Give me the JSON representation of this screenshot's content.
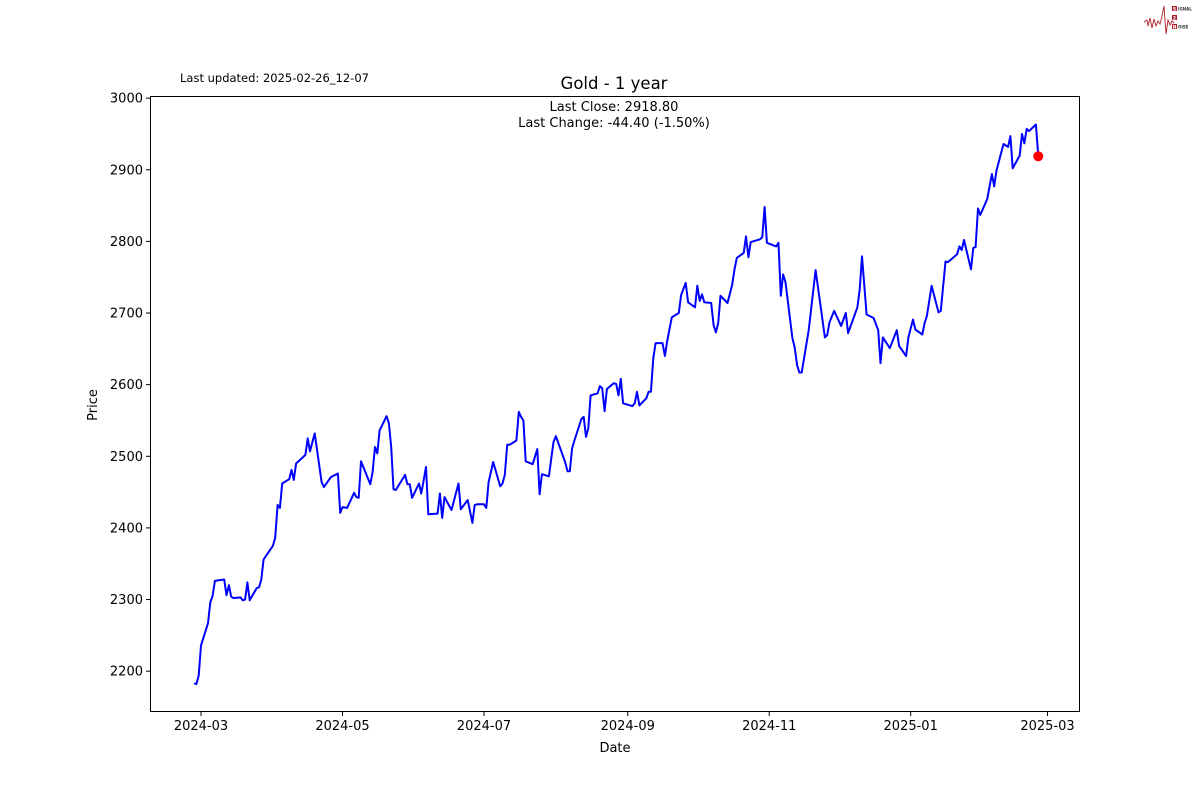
{
  "header": {
    "last_updated": "Last updated: 2025-02-26_12-07"
  },
  "logo": {
    "text": "SIGNAL 2 NOISE",
    "color": "#b0202a"
  },
  "chart_data": {
    "type": "line",
    "title": "Gold - 1 year",
    "xlabel": "Date",
    "ylabel": "Price",
    "annotation": {
      "line1": "Last Close: 2918.80",
      "line2": "Last Change: -44.40 (-1.50%)"
    },
    "xlim": [
      "2024-02-08",
      "2025-03-15"
    ],
    "ylim": [
      2143,
      3003
    ],
    "grid": false,
    "line_color": "#0000ff",
    "marker_color": "#ff0000",
    "x_ticks": [
      {
        "date": "2024-03-01",
        "label": "2024-03"
      },
      {
        "date": "2024-05-01",
        "label": "2024-05"
      },
      {
        "date": "2024-07-01",
        "label": "2024-07"
      },
      {
        "date": "2024-09-01",
        "label": "2024-09"
      },
      {
        "date": "2024-11-01",
        "label": "2024-11"
      },
      {
        "date": "2025-01-01",
        "label": "2025-01"
      },
      {
        "date": "2025-03-01",
        "label": "2025-03"
      }
    ],
    "y_ticks": [
      {
        "value": 2200,
        "label": "2200"
      },
      {
        "value": 2300,
        "label": "2300"
      },
      {
        "value": 2400,
        "label": "2400"
      },
      {
        "value": 2500,
        "label": "2500"
      },
      {
        "value": 2600,
        "label": "2600"
      },
      {
        "value": 2700,
        "label": "2700"
      },
      {
        "value": 2800,
        "label": "2800"
      },
      {
        "value": 2900,
        "label": "2900"
      },
      {
        "value": 3000,
        "label": "3000"
      }
    ],
    "last_point": {
      "date": "2025-02-25",
      "value": 2918.8
    },
    "series": [
      {
        "x": [
          "2024-02-27",
          "2024-02-28",
          "2024-02-29",
          "2024-03-01",
          "2024-03-04",
          "2024-03-05",
          "2024-03-06",
          "2024-03-07",
          "2024-03-11",
          "2024-03-12",
          "2024-03-13",
          "2024-03-14",
          "2024-03-15",
          "2024-03-18",
          "2024-03-19",
          "2024-03-20",
          "2024-03-21",
          "2024-03-22",
          "2024-03-25",
          "2024-03-26",
          "2024-03-27",
          "2024-03-28",
          "2024-04-01",
          "2024-04-02",
          "2024-04-03",
          "2024-04-04",
          "2024-04-05",
          "2024-04-08",
          "2024-04-09",
          "2024-04-10",
          "2024-04-11",
          "2024-04-15",
          "2024-04-16",
          "2024-04-17",
          "2024-04-19",
          "2024-04-22",
          "2024-04-23",
          "2024-04-26",
          "2024-04-29",
          "2024-04-30",
          "2024-05-01",
          "2024-05-03",
          "2024-05-06",
          "2024-05-07",
          "2024-05-08",
          "2024-05-09",
          "2024-05-13",
          "2024-05-14",
          "2024-05-15",
          "2024-05-16",
          "2024-05-17",
          "2024-05-20",
          "2024-05-21",
          "2024-05-22",
          "2024-05-23",
          "2024-05-24",
          "2024-05-28",
          "2024-05-29",
          "2024-05-30",
          "2024-05-31",
          "2024-06-03",
          "2024-06-04",
          "2024-06-06",
          "2024-06-07",
          "2024-06-11",
          "2024-06-12",
          "2024-06-13",
          "2024-06-14",
          "2024-06-17",
          "2024-06-20",
          "2024-06-21",
          "2024-06-24",
          "2024-06-26",
          "2024-06-27",
          "2024-06-28",
          "2024-07-01",
          "2024-07-02",
          "2024-07-03",
          "2024-07-05",
          "2024-07-08",
          "2024-07-09",
          "2024-07-10",
          "2024-07-11",
          "2024-07-12",
          "2024-07-15",
          "2024-07-16",
          "2024-07-17",
          "2024-07-18",
          "2024-07-19",
          "2024-07-22",
          "2024-07-24",
          "2024-07-25",
          "2024-07-26",
          "2024-07-29",
          "2024-07-31",
          "2024-08-01",
          "2024-08-05",
          "2024-08-06",
          "2024-08-07",
          "2024-08-08",
          "2024-08-09",
          "2024-08-12",
          "2024-08-13",
          "2024-08-14",
          "2024-08-15",
          "2024-08-16",
          "2024-08-19",
          "2024-08-20",
          "2024-08-21",
          "2024-08-22",
          "2024-08-23",
          "2024-08-26",
          "2024-08-27",
          "2024-08-28",
          "2024-08-29",
          "2024-08-30",
          "2024-09-03",
          "2024-09-04",
          "2024-09-05",
          "2024-09-06",
          "2024-09-09",
          "2024-09-10",
          "2024-09-11",
          "2024-09-12",
          "2024-09-13",
          "2024-09-16",
          "2024-09-17",
          "2024-09-18",
          "2024-09-20",
          "2024-09-23",
          "2024-09-24",
          "2024-09-26",
          "2024-09-27",
          "2024-09-30",
          "2024-10-01",
          "2024-10-02",
          "2024-10-03",
          "2024-10-04",
          "2024-10-07",
          "2024-10-08",
          "2024-10-09",
          "2024-10-10",
          "2024-10-11",
          "2024-10-14",
          "2024-10-16",
          "2024-10-17",
          "2024-10-18",
          "2024-10-21",
          "2024-10-22",
          "2024-10-23",
          "2024-10-24",
          "2024-10-28",
          "2024-10-29",
          "2024-10-30",
          "2024-10-31",
          "2024-11-04",
          "2024-11-05",
          "2024-11-06",
          "2024-11-07",
          "2024-11-08",
          "2024-11-11",
          "2024-11-12",
          "2024-11-13",
          "2024-11-14",
          "2024-11-15",
          "2024-11-18",
          "2024-11-19",
          "2024-11-21",
          "2024-11-25",
          "2024-11-26",
          "2024-11-27",
          "2024-11-29",
          "2024-12-02",
          "2024-12-04",
          "2024-12-05",
          "2024-12-09",
          "2024-12-10",
          "2024-12-11",
          "2024-12-13",
          "2024-12-16",
          "2024-12-18",
          "2024-12-19",
          "2024-12-20",
          "2024-12-23",
          "2024-12-26",
          "2024-12-27",
          "2024-12-30",
          "2024-12-31",
          "2025-01-02",
          "2025-01-03",
          "2025-01-06",
          "2025-01-07",
          "2025-01-08",
          "2025-01-10",
          "2025-01-13",
          "2025-01-14",
          "2025-01-16",
          "2025-01-17",
          "2025-01-21",
          "2025-01-22",
          "2025-01-23",
          "2025-01-24",
          "2025-01-27",
          "2025-01-28",
          "2025-01-29",
          "2025-01-30",
          "2025-01-31",
          "2025-02-03",
          "2025-02-05",
          "2025-02-06",
          "2025-02-07",
          "2025-02-10",
          "2025-02-12",
          "2025-02-13",
          "2025-02-14",
          "2025-02-17",
          "2025-02-18",
          "2025-02-19",
          "2025-02-20",
          "2025-02-21",
          "2025-02-24",
          "2025-02-25"
        ],
        "values": [
          2183,
          2182,
          2194,
          2236,
          2267,
          2296,
          2305,
          2326,
          2328,
          2306,
          2320,
          2304,
          2302,
          2303,
          2299,
          2300,
          2324,
          2299,
          2316,
          2317,
          2328,
          2356,
          2375,
          2386,
          2432,
          2428,
          2462,
          2468,
          2481,
          2467,
          2490,
          2502,
          2525,
          2507,
          2532,
          2464,
          2457,
          2471,
          2476,
          2421,
          2429,
          2428,
          2449,
          2443,
          2442,
          2493,
          2461,
          2478,
          2513,
          2504,
          2536,
          2556,
          2546,
          2513,
          2454,
          2453,
          2474,
          2461,
          2461,
          2442,
          2462,
          2448,
          2485,
          2419,
          2420,
          2448,
          2414,
          2443,
          2425,
          2462,
          2426,
          2439,
          2407,
          2432,
          2433,
          2433,
          2428,
          2464,
          2492,
          2458,
          2462,
          2474,
          2516,
          2516,
          2522,
          2562,
          2555,
          2550,
          2493,
          2489,
          2510,
          2447,
          2475,
          2472,
          2520,
          2528,
          2492,
          2479,
          2479,
          2511,
          2522,
          2552,
          2555,
          2527,
          2539,
          2585,
          2588,
          2598,
          2595,
          2563,
          2594,
          2602,
          2601,
          2585,
          2608,
          2574,
          2570,
          2574,
          2590,
          2571,
          2581,
          2590,
          2590,
          2637,
          2658,
          2658,
          2640,
          2661,
          2694,
          2700,
          2725,
          2742,
          2715,
          2708,
          2738,
          2717,
          2726,
          2715,
          2714,
          2683,
          2673,
          2686,
          2724,
          2714,
          2739,
          2760,
          2777,
          2784,
          2807,
          2778,
          2799,
          2803,
          2806,
          2848,
          2798,
          2793,
          2798,
          2724,
          2754,
          2743,
          2665,
          2652,
          2627,
          2617,
          2617,
          2676,
          2704,
          2760,
          2666,
          2669,
          2687,
          2703,
          2682,
          2700,
          2672,
          2708,
          2733,
          2779,
          2698,
          2693,
          2676,
          2630,
          2666,
          2651,
          2676,
          2654,
          2640,
          2666,
          2691,
          2677,
          2670,
          2686,
          2696,
          2738,
          2701,
          2703,
          2772,
          2771,
          2782,
          2793,
          2788,
          2802,
          2761,
          2791,
          2792,
          2846,
          2837,
          2859,
          2894,
          2877,
          2899,
          2936,
          2932,
          2947,
          2902,
          2920,
          2950,
          2937,
          2957,
          2954,
          2963.2,
          2918.8
        ]
      }
    ]
  }
}
